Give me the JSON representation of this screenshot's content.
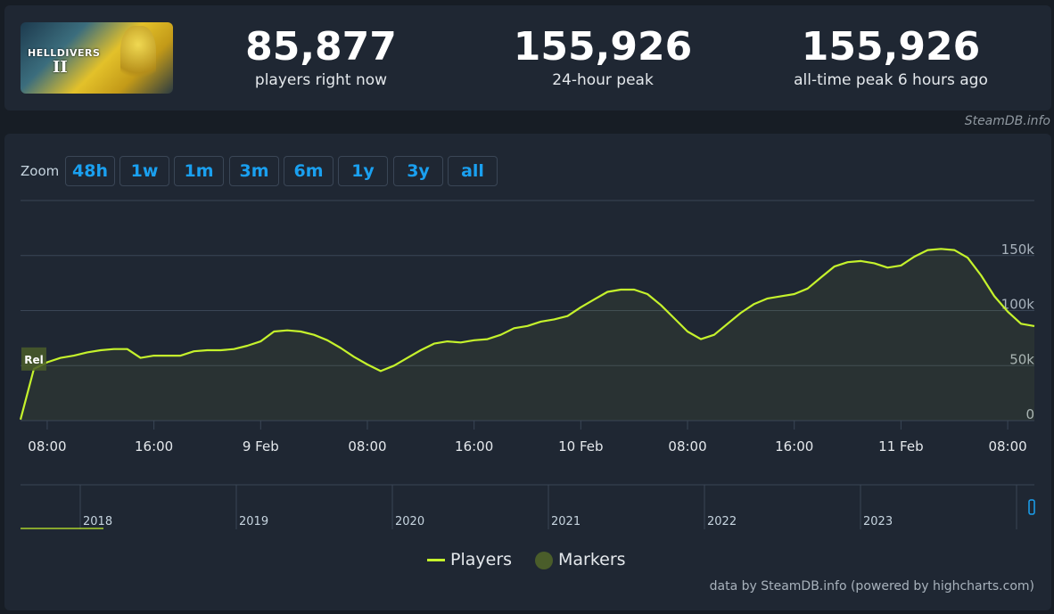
{
  "game": {
    "logo_text": "HELLDIVERS",
    "logo_numeral": "II"
  },
  "stats": [
    {
      "value": "85,877",
      "label": "players right now"
    },
    {
      "value": "155,926",
      "label": "24-hour peak"
    },
    {
      "value": "155,926",
      "label": "all-time peak 6 hours ago"
    }
  ],
  "credit": "SteamDB.info",
  "zoom": {
    "label": "Zoom",
    "buttons": [
      "48h",
      "1w",
      "1m",
      "3m",
      "6m",
      "1y",
      "3y",
      "all"
    ]
  },
  "colors": {
    "line": "#c5f22c",
    "button_text": "#1aa0f0",
    "marker": "#4a5d2a",
    "grid": "#3a4656"
  },
  "chart_data": {
    "type": "line",
    "series": [
      {
        "name": "Players",
        "x": [
          "8 Feb 06:00",
          "8 Feb 07:00",
          "8 Feb 08:00",
          "8 Feb 09:00",
          "8 Feb 10:00",
          "8 Feb 11:00",
          "8 Feb 12:00",
          "8 Feb 13:00",
          "8 Feb 14:00",
          "8 Feb 15:00",
          "8 Feb 16:00",
          "8 Feb 17:00",
          "8 Feb 18:00",
          "8 Feb 19:00",
          "8 Feb 20:00",
          "8 Feb 21:00",
          "8 Feb 22:00",
          "8 Feb 23:00",
          "9 Feb 00:00",
          "9 Feb 01:00",
          "9 Feb 02:00",
          "9 Feb 03:00",
          "9 Feb 04:00",
          "9 Feb 05:00",
          "9 Feb 06:00",
          "9 Feb 07:00",
          "9 Feb 08:00",
          "9 Feb 09:00",
          "9 Feb 10:00",
          "9 Feb 11:00",
          "9 Feb 12:00",
          "9 Feb 13:00",
          "9 Feb 14:00",
          "9 Feb 15:00",
          "9 Feb 16:00",
          "9 Feb 17:00",
          "9 Feb 18:00",
          "9 Feb 19:00",
          "9 Feb 20:00",
          "9 Feb 21:00",
          "9 Feb 22:00",
          "9 Feb 23:00",
          "10 Feb 00:00",
          "10 Feb 01:00",
          "10 Feb 02:00",
          "10 Feb 03:00",
          "10 Feb 04:00",
          "10 Feb 05:00",
          "10 Feb 06:00",
          "10 Feb 07:00",
          "10 Feb 08:00",
          "10 Feb 09:00",
          "10 Feb 10:00",
          "10 Feb 11:00",
          "10 Feb 12:00",
          "10 Feb 13:00",
          "10 Feb 14:00",
          "10 Feb 15:00",
          "10 Feb 16:00",
          "10 Feb 17:00",
          "10 Feb 18:00",
          "10 Feb 19:00",
          "10 Feb 20:00",
          "10 Feb 21:00",
          "10 Feb 22:00",
          "10 Feb 23:00",
          "11 Feb 00:00",
          "11 Feb 01:00",
          "11 Feb 02:00",
          "11 Feb 03:00",
          "11 Feb 04:00",
          "11 Feb 05:00",
          "11 Feb 06:00",
          "11 Feb 07:00",
          "11 Feb 08:00",
          "11 Feb 09:00",
          "11 Feb 10:00"
        ],
        "values": [
          1000,
          47000,
          53000,
          57000,
          59000,
          62000,
          64000,
          65000,
          65000,
          57000,
          59000,
          59000,
          59000,
          63000,
          64000,
          64000,
          65000,
          68000,
          72000,
          81000,
          82000,
          81000,
          78000,
          73000,
          66000,
          58000,
          51000,
          45000,
          50000,
          57000,
          64000,
          70000,
          72000,
          71000,
          73000,
          74000,
          78000,
          84000,
          86000,
          90000,
          92000,
          95000,
          103000,
          110000,
          117000,
          119000,
          119000,
          115000,
          105000,
          93000,
          81000,
          74000,
          78000,
          88000,
          98000,
          106000,
          111000,
          113000,
          115000,
          120000,
          130000,
          140000,
          144000,
          145000,
          143000,
          139000,
          141000,
          149000,
          155000,
          156000,
          155000,
          148000,
          132000,
          113000,
          99000,
          88000,
          85877
        ]
      }
    ],
    "x_ticks": [
      "08:00",
      "16:00",
      "9 Feb",
      "08:00",
      "16:00",
      "10 Feb",
      "08:00",
      "16:00",
      "11 Feb",
      "08:00"
    ],
    "y_ticks": [
      "0",
      "50k",
      "100k",
      "150k"
    ],
    "ylim": [
      0,
      200000
    ],
    "markers": [
      {
        "label": "Rel",
        "x": "8 Feb 07:00",
        "y": 56000
      }
    ],
    "navigator_years": [
      "2018",
      "2019",
      "2020",
      "2021",
      "2022",
      "2023"
    ],
    "legend": [
      "Players",
      "Markers"
    ],
    "grid": true
  },
  "footer": "data by SteamDB.info (powered by highcharts.com)"
}
